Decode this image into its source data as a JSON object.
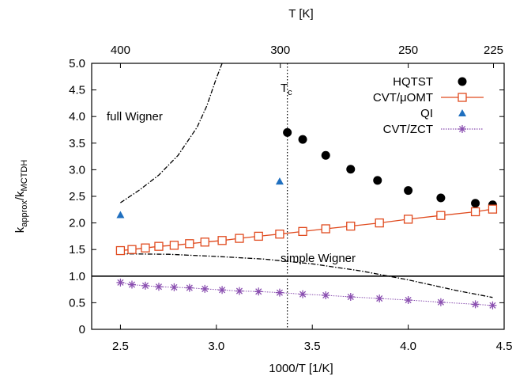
{
  "chart_data": {
    "type": "scatter",
    "xlabel": "1000/T [1/K]",
    "top_xlabel": "T [K]",
    "ylabel_main": "k",
    "ylabel_sub1": "approx",
    "ylabel_sep": "/k",
    "ylabel_sub2": "MCTDH",
    "xlim": [
      2.35,
      4.5
    ],
    "ylim": [
      0,
      5.0
    ],
    "x_ticks": [
      2.5,
      3.0,
      3.5,
      4.0,
      4.5
    ],
    "x_tick_labels": [
      "2.5",
      "3.0",
      "3.5",
      "4.0",
      "4.5"
    ],
    "y_ticks": [
      0,
      0.5,
      1.0,
      1.5,
      2.0,
      2.5,
      3.0,
      3.5,
      4.0,
      4.5,
      5.0
    ],
    "y_tick_labels": [
      "0",
      "0.5",
      "1.0",
      "1.5",
      "2.0",
      "2.5",
      "3.0",
      "3.5",
      "4.0",
      "4.5",
      "5.0"
    ],
    "top_ticks_T": [
      400,
      300,
      250,
      225
    ],
    "top_tick_labels": [
      "400",
      "300",
      "250",
      "225"
    ],
    "legend_position": "top-right",
    "series": [
      {
        "name": "HQTST",
        "style": "filled-circle",
        "color": "#000000",
        "x": [
          3.37,
          3.45,
          3.57,
          3.7,
          3.84,
          4.0,
          4.17,
          4.35,
          4.44
        ],
        "y": [
          3.7,
          3.57,
          3.27,
          3.01,
          2.8,
          2.61,
          2.47,
          2.37,
          2.34
        ]
      },
      {
        "name": "CVT/μOMT",
        "style": "open-square-line",
        "color": "#e04a1e",
        "x": [
          2.5,
          2.56,
          2.63,
          2.7,
          2.78,
          2.86,
          2.94,
          3.03,
          3.12,
          3.22,
          3.33,
          3.45,
          3.57,
          3.7,
          3.85,
          4.0,
          4.17,
          4.35,
          4.44
        ],
        "y": [
          1.48,
          1.5,
          1.53,
          1.56,
          1.58,
          1.61,
          1.64,
          1.67,
          1.71,
          1.75,
          1.79,
          1.84,
          1.89,
          1.94,
          2.0,
          2.07,
          2.14,
          2.21,
          2.26
        ]
      },
      {
        "name": "QI",
        "style": "filled-triangle",
        "color": "#1f6fbf",
        "x": [
          2.5,
          3.33
        ],
        "y": [
          2.15,
          2.78
        ]
      },
      {
        "name": "CVT/ZCT",
        "style": "star-line",
        "color": "#8a4fb0",
        "x": [
          2.5,
          2.56,
          2.63,
          2.7,
          2.78,
          2.86,
          2.94,
          3.03,
          3.12,
          3.22,
          3.33,
          3.45,
          3.57,
          3.7,
          3.85,
          4.0,
          4.17,
          4.35,
          4.44
        ],
        "y": [
          0.88,
          0.84,
          0.82,
          0.8,
          0.79,
          0.78,
          0.76,
          0.74,
          0.72,
          0.71,
          0.69,
          0.66,
          0.64,
          0.61,
          0.58,
          0.55,
          0.51,
          0.47,
          0.45
        ]
      }
    ],
    "curves": [
      {
        "label": "full Wigner",
        "style": "dash-dot",
        "x": [
          2.5,
          2.6,
          2.7,
          2.8,
          2.9,
          2.95,
          3.0,
          3.03
        ],
        "y": [
          2.38,
          2.62,
          2.9,
          3.27,
          3.8,
          4.2,
          4.72,
          5.0
        ]
      },
      {
        "label": "simple Wigner",
        "style": "dash-dot",
        "x": [
          2.5,
          2.75,
          3.0,
          3.25,
          3.5,
          3.75,
          4.0,
          4.25,
          4.44
        ],
        "y": [
          1.42,
          1.41,
          1.37,
          1.32,
          1.23,
          1.1,
          0.93,
          0.73,
          0.6
        ]
      }
    ],
    "hline": {
      "y": 1.0
    },
    "vline": {
      "x": 3.37,
      "label_main": "T",
      "label_sub": "c"
    }
  }
}
